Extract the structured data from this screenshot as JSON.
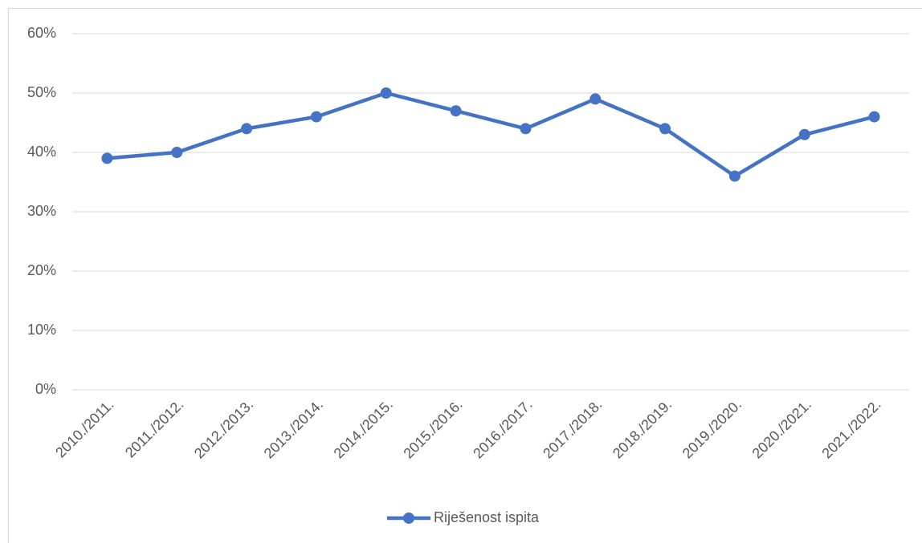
{
  "chart_data": {
    "type": "line",
    "categories": [
      "2010./2011.",
      "2011./2012.",
      "2012./2013.",
      "2013./2014.",
      "2014./2015.",
      "2015./2016.",
      "2016./2017.",
      "2017./2018.",
      "2018./2019.",
      "2019./2020.",
      "2020./2021.",
      "2021./2022."
    ],
    "series": [
      {
        "name": "Riješenost ispita",
        "color": "#4472c4",
        "values": [
          39,
          40,
          44,
          46,
          50,
          47,
          44,
          49,
          44,
          36,
          43,
          46
        ]
      }
    ],
    "ylim": [
      0,
      60
    ],
    "yticks": [
      {
        "value": 0,
        "label": "0%"
      },
      {
        "value": 10,
        "label": "10%"
      },
      {
        "value": 20,
        "label": "20%"
      },
      {
        "value": 30,
        "label": "30%"
      },
      {
        "value": 40,
        "label": "40%"
      },
      {
        "value": 50,
        "label": "50%"
      },
      {
        "value": 60,
        "label": "60%"
      }
    ],
    "grid": true,
    "legend": "bottom"
  }
}
